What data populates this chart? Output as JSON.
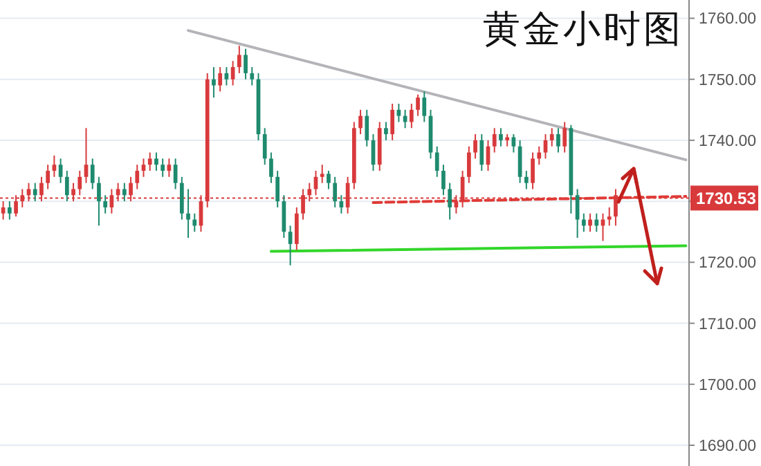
{
  "chart_data": {
    "type": "candlestick",
    "title": "黄金小时图",
    "categories": [
      null,
      null,
      null,
      null,
      null,
      null,
      null,
      null,
      null,
      null,
      null,
      null,
      null,
      null,
      null,
      null,
      null,
      null,
      null,
      null,
      null,
      null,
      null,
      null,
      null,
      null,
      null,
      null,
      null,
      null,
      null,
      null,
      null,
      null,
      null,
      null,
      null,
      null,
      null,
      null,
      null,
      null,
      null,
      null,
      null,
      null,
      null,
      null,
      null,
      null,
      null,
      null,
      null,
      null,
      null,
      null,
      null,
      null,
      null,
      null,
      null,
      null,
      null,
      null,
      null,
      null,
      null,
      null,
      null,
      null,
      null,
      null,
      null,
      null,
      null,
      null,
      null,
      null,
      null,
      null,
      null,
      null,
      null,
      null,
      null,
      null,
      null,
      null,
      null,
      null,
      null,
      null,
      null,
      null,
      null,
      null,
      null,
      null,
      null,
      null,
      null,
      null,
      null,
      null,
      null,
      null,
      null,
      null
    ],
    "ohlc": [
      [
        1728,
        1730,
        1727,
        1729
      ],
      [
        1729,
        1730,
        1727,
        1728
      ],
      [
        1728,
        1731,
        1727.5,
        1730
      ],
      [
        1730,
        1732,
        1729,
        1731
      ],
      [
        1731,
        1733,
        1730,
        1732
      ],
      [
        1732,
        1733,
        1730,
        1731
      ],
      [
        1731,
        1734,
        1730,
        1733
      ],
      [
        1733,
        1736,
        1732,
        1735
      ],
      [
        1735,
        1737.5,
        1734,
        1736
      ],
      [
        1736,
        1737,
        1733,
        1734
      ],
      [
        1734,
        1735,
        1730,
        1731
      ],
      [
        1731,
        1733,
        1730,
        1732
      ],
      [
        1732,
        1735,
        1731,
        1734
      ],
      [
        1734,
        1742,
        1733,
        1736
      ],
      [
        1736,
        1737,
        1732,
        1733
      ],
      [
        1733,
        1734,
        1726,
        1730
      ],
      [
        1730,
        1731,
        1728,
        1729
      ],
      [
        1729,
        1732,
        1728,
        1731
      ],
      [
        1731,
        1733,
        1730,
        1732
      ],
      [
        1732,
        1733,
        1730,
        1731
      ],
      [
        1731,
        1734,
        1730,
        1733
      ],
      [
        1733,
        1736,
        1732,
        1735
      ],
      [
        1735,
        1737,
        1734,
        1736
      ],
      [
        1736,
        1738,
        1735,
        1737
      ],
      [
        1737,
        1738,
        1735,
        1736
      ],
      [
        1736,
        1737,
        1734,
        1735
      ],
      [
        1735,
        1737,
        1734,
        1736
      ],
      [
        1736,
        1737,
        1732,
        1733
      ],
      [
        1733,
        1734,
        1727,
        1728
      ],
      [
        1728,
        1732,
        1724,
        1727
      ],
      [
        1727,
        1728,
        1725,
        1726
      ],
      [
        1726,
        1731,
        1725,
        1730
      ],
      [
        1730,
        1751,
        1729,
        1750
      ],
      [
        1750,
        1752,
        1747,
        1749
      ],
      [
        1749,
        1752,
        1748,
        1751
      ],
      [
        1751,
        1752,
        1749,
        1750
      ],
      [
        1750,
        1753,
        1749,
        1752
      ],
      [
        1752,
        1755.5,
        1751,
        1754
      ],
      [
        1754,
        1755,
        1750,
        1751
      ],
      [
        1751,
        1752,
        1749,
        1750
      ],
      [
        1750,
        1751,
        1740,
        1741
      ],
      [
        1741,
        1742,
        1736,
        1737
      ],
      [
        1737,
        1738,
        1733,
        1734
      ],
      [
        1734,
        1735,
        1729,
        1730
      ],
      [
        1730,
        1731,
        1724,
        1725
      ],
      [
        1725,
        1726,
        1719.5,
        1723
      ],
      [
        1723,
        1729,
        1722,
        1728
      ],
      [
        1728,
        1732,
        1727,
        1731
      ],
      [
        1731,
        1733,
        1730,
        1732
      ],
      [
        1732,
        1735,
        1731,
        1734
      ],
      [
        1734,
        1736,
        1733,
        1734.5
      ],
      [
        1734.5,
        1735,
        1732,
        1733
      ],
      [
        1733,
        1734,
        1729,
        1730
      ],
      [
        1730,
        1731,
        1728,
        1729
      ],
      [
        1729,
        1734,
        1728,
        1733
      ],
      [
        1733,
        1743,
        1732,
        1742
      ],
      [
        1742,
        1745,
        1741,
        1744
      ],
      [
        1744,
        1745,
        1739,
        1740
      ],
      [
        1740,
        1741,
        1735,
        1736
      ],
      [
        1736,
        1743,
        1735,
        1742
      ],
      [
        1742,
        1743,
        1740,
        1741
      ],
      [
        1741,
        1746,
        1740,
        1745
      ],
      [
        1745,
        1746,
        1743,
        1744
      ],
      [
        1744,
        1745,
        1742,
        1743
      ],
      [
        1743,
        1746,
        1742,
        1745
      ],
      [
        1745,
        1747.5,
        1744,
        1747
      ],
      [
        1747,
        1748,
        1743,
        1744
      ],
      [
        1744,
        1745,
        1737,
        1738
      ],
      [
        1738,
        1739,
        1734,
        1735
      ],
      [
        1735,
        1736,
        1731,
        1732
      ],
      [
        1732,
        1733,
        1727,
        1729
      ],
      [
        1729,
        1731,
        1728,
        1730
      ],
      [
        1730,
        1735,
        1729,
        1734
      ],
      [
        1734,
        1739,
        1733,
        1738
      ],
      [
        1738,
        1741,
        1737,
        1740
      ],
      [
        1740,
        1741,
        1735,
        1736
      ],
      [
        1736,
        1740,
        1735,
        1739
      ],
      [
        1739,
        1742,
        1738,
        1741
      ],
      [
        1741,
        1742,
        1739,
        1740
      ],
      [
        1740,
        1741,
        1739,
        1740.5
      ],
      [
        1740.5,
        1741,
        1738,
        1739
      ],
      [
        1739,
        1740,
        1733,
        1734
      ],
      [
        1734,
        1735,
        1732,
        1733
      ],
      [
        1733,
        1738,
        1732,
        1737
      ],
      [
        1737,
        1739,
        1736,
        1738
      ],
      [
        1738,
        1741,
        1737,
        1740
      ],
      [
        1740,
        1742,
        1739,
        1741
      ],
      [
        1741,
        1742,
        1738,
        1739
      ],
      [
        1739,
        1743,
        1738,
        1742
      ],
      [
        1742,
        1742.5,
        1728,
        1731
      ],
      [
        1731,
        1732,
        1724,
        1727
      ],
      [
        1727,
        1728,
        1725,
        1726
      ],
      [
        1726,
        1728,
        1725,
        1727
      ],
      [
        1727,
        1728,
        1725,
        1726
      ],
      [
        1726,
        1728,
        1723.5,
        1727
      ],
      [
        1727,
        1729,
        1726,
        1727.5
      ],
      [
        1727.5,
        1732,
        1726,
        1731
      ],
      null,
      null,
      null,
      null,
      null,
      null,
      null,
      null,
      null,
      null,
      null
    ],
    "colors": [
      "#d83a3c",
      "#1e8a6e",
      "#d83a3c",
      "#d83a3c",
      "#d83a3c",
      "#1e8a6e",
      "#d83a3c",
      "#d83a3c",
      "#d83a3c",
      "#1e8a6e",
      "#1e8a6e",
      "#d83a3c",
      "#d83a3c",
      "#d83a3c",
      "#1e8a6e",
      "#1e8a6e",
      "#1e8a6e",
      "#d83a3c",
      "#d83a3c",
      "#1e8a6e",
      "#d83a3c",
      "#d83a3c",
      "#d83a3c",
      "#d83a3c",
      "#1e8a6e",
      "#1e8a6e",
      "#d83a3c",
      "#1e8a6e",
      "#1e8a6e",
      "#1e8a6e",
      "#1e8a6e",
      "#d83a3c",
      "#d83a3c",
      "#1e8a6e",
      "#d83a3c",
      "#1e8a6e",
      "#d83a3c",
      "#d83a3c",
      "#1e8a6e",
      "#1e8a6e",
      "#1e8a6e",
      "#1e8a6e",
      "#1e8a6e",
      "#1e8a6e",
      "#1e8a6e",
      "#1e8a6e",
      "#d83a3c",
      "#d83a3c",
      "#d83a3c",
      "#d83a3c",
      "#d83a3c",
      "#1e8a6e",
      "#1e8a6e",
      "#1e8a6e",
      "#d83a3c",
      "#d83a3c",
      "#d83a3c",
      "#1e8a6e",
      "#1e8a6e",
      "#d83a3c",
      "#1e8a6e",
      "#d83a3c",
      "#1e8a6e",
      "#1e8a6e",
      "#d83a3c",
      "#d83a3c",
      "#1e8a6e",
      "#1e8a6e",
      "#1e8a6e",
      "#1e8a6e",
      "#1e8a6e",
      "#d83a3c",
      "#d83a3c",
      "#d83a3c",
      "#d83a3c",
      "#1e8a6e",
      "#d83a3c",
      "#d83a3c",
      "#1e8a6e",
      "#d83a3c",
      "#1e8a6e",
      "#1e8a6e",
      "#1e8a6e",
      "#d83a3c",
      "#d83a3c",
      "#d83a3c",
      "#d83a3c",
      "#1e8a6e",
      "#d83a3c",
      "#1e8a6e",
      "#1e8a6e",
      "#1e8a6e",
      "#d83a3c",
      "#1e8a6e",
      "#d83a3c",
      "#d83a3c",
      "#d83a3c",
      null,
      null,
      null,
      null,
      null,
      null,
      null,
      null,
      null,
      null,
      null
    ],
    "series": [
      {
        "type": "line",
        "color": "#b4b4b8",
        "values": [
          null,
          null,
          null,
          null,
          null,
          null,
          null,
          null,
          null,
          null,
          null,
          null,
          null,
          null,
          null,
          null,
          null,
          null,
          null,
          null,
          null,
          null,
          null,
          null,
          null,
          null,
          null,
          null,
          null,
          1758,
          null,
          null,
          null,
          null,
          null,
          null,
          null,
          null,
          null,
          null,
          null,
          null,
          null,
          null,
          null,
          null,
          null,
          null,
          null,
          null,
          null,
          null,
          null,
          null,
          null,
          null,
          null,
          null,
          null,
          null,
          null,
          null,
          null,
          null,
          null,
          null,
          null,
          null,
          null,
          null,
          null,
          null,
          null,
          null,
          null,
          null,
          null,
          null,
          null,
          null,
          null,
          null,
          null,
          null,
          null,
          null,
          null,
          null,
          null,
          null,
          null,
          null,
          null,
          null,
          null,
          null,
          null,
          null,
          null,
          null,
          null,
          null,
          null,
          null,
          null,
          null,
          null,
          1736.8
        ]
      },
      {
        "type": "line",
        "color": "#33d62a",
        "values": [
          null,
          null,
          null,
          null,
          null,
          null,
          null,
          null,
          null,
          null,
          null,
          null,
          null,
          null,
          null,
          null,
          null,
          null,
          null,
          null,
          null,
          null,
          null,
          null,
          null,
          null,
          null,
          null,
          null,
          null,
          null,
          null,
          null,
          null,
          null,
          null,
          null,
          null,
          null,
          null,
          null,
          null,
          1721.8,
          null,
          null,
          null,
          null,
          null,
          null,
          null,
          null,
          null,
          null,
          null,
          null,
          null,
          null,
          null,
          null,
          null,
          null,
          null,
          null,
          null,
          null,
          null,
          null,
          null,
          null,
          null,
          null,
          null,
          null,
          null,
          null,
          null,
          null,
          null,
          null,
          null,
          null,
          null,
          null,
          null,
          null,
          null,
          null,
          null,
          null,
          null,
          null,
          null,
          null,
          null,
          null,
          null,
          null,
          null,
          null,
          null,
          null,
          null,
          null,
          null,
          null,
          null,
          null,
          1722.7
        ]
      },
      {
        "type": "line",
        "color": "#e03a36",
        "line_style": "dashed",
        "values": [
          null,
          null,
          null,
          null,
          null,
          null,
          null,
          null,
          null,
          null,
          null,
          null,
          null,
          null,
          null,
          null,
          null,
          null,
          null,
          null,
          null,
          null,
          null,
          null,
          null,
          null,
          null,
          null,
          null,
          null,
          null,
          null,
          null,
          null,
          null,
          null,
          null,
          null,
          null,
          null,
          null,
          null,
          null,
          null,
          null,
          null,
          null,
          null,
          null,
          null,
          null,
          null,
          null,
          null,
          null,
          null,
          null,
          null,
          1729.8,
          null,
          null,
          null,
          null,
          null,
          null,
          null,
          null,
          null,
          null,
          null,
          null,
          null,
          null,
          null,
          null,
          null,
          null,
          null,
          null,
          null,
          null,
          null,
          null,
          null,
          null,
          null,
          null,
          null,
          null,
          null,
          null,
          null,
          null,
          null,
          null,
          null,
          null,
          null,
          null,
          null,
          null,
          null,
          null,
          null,
          null,
          null,
          null,
          1730.8
        ]
      }
    ],
    "ref_lines": [
      {
        "axis": "y",
        "value": 1730.53,
        "label": "1730.53",
        "color": "#d83a3c",
        "line_style": "dotted"
      }
    ],
    "ylim": [
      1686.6,
      1763
    ],
    "yticks": [
      {
        "value": 1690,
        "label": "1690.00"
      },
      {
        "value": 1700,
        "label": "1700.00"
      },
      {
        "value": 1710,
        "label": "1710.00"
      },
      {
        "value": 1720,
        "label": "1720.00"
      },
      {
        "value": 1730,
        "label": null
      },
      {
        "value": 1740,
        "label": "1740.00"
      },
      {
        "value": 1750,
        "label": "1750.00"
      },
      {
        "value": 1760,
        "label": "1760.00"
      }
    ],
    "grid": "y",
    "tick_labels": "y"
  }
}
